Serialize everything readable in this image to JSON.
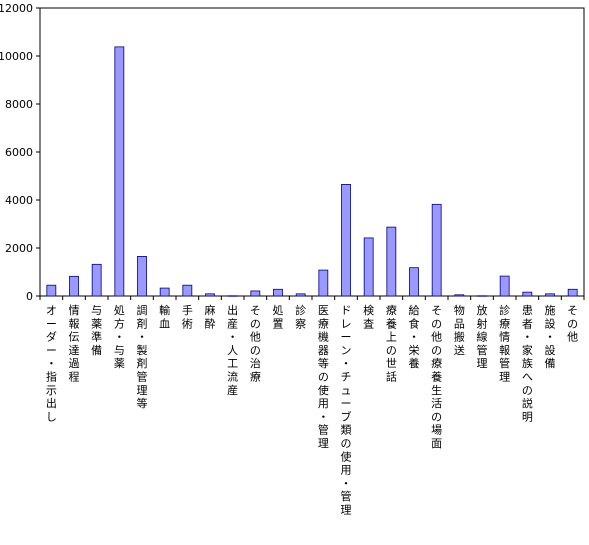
{
  "chart_data": {
    "type": "bar",
    "title": "",
    "xlabel": "",
    "ylabel": "",
    "ylim": [
      0,
      12000
    ],
    "yticks": [
      0,
      2000,
      4000,
      6000,
      8000,
      10000,
      12000
    ],
    "grid": false,
    "legend": "none",
    "bar_color": "#9999ff",
    "bar_edge_color": "#000080",
    "categories": [
      "オーダー・指示出し",
      "情報伝達過程",
      "与薬準備",
      "処方・与薬",
      "調剤・製剤管理等",
      "輸血",
      "手術",
      "麻酔",
      "出産・人工流産",
      "その他の治療",
      "処置",
      "診察",
      "医療機器等の使用・管理",
      "ドレーン・チューブ類の使用・管理",
      "検査",
      "療養上の世話",
      "給食・栄養",
      "その他の療養生活の場面",
      "物品搬送",
      "放射線管理",
      "診療情報管理",
      "患者・家族への説明",
      "施設・設備",
      "その他"
    ],
    "values": [
      450,
      820,
      1320,
      10380,
      1650,
      330,
      450,
      90,
      10,
      210,
      280,
      90,
      1080,
      4650,
      2420,
      2870,
      1180,
      3820,
      50,
      10,
      830,
      160,
      90,
      280
    ]
  }
}
